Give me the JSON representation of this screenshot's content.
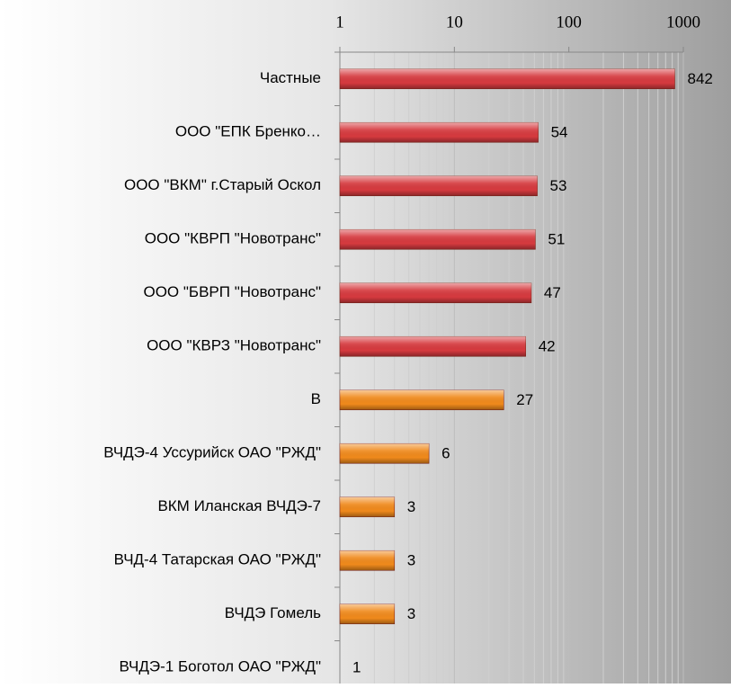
{
  "chart_data": {
    "type": "bar",
    "orientation": "horizontal",
    "xscale": "log",
    "categories": [
      "Частные",
      "ООО \"ЕПК Бренко…",
      "ООО \"ВКМ\" г.Старый Оскол",
      "ООО \"КВРП \"Новотранс\"",
      "ООО \"БВРП \"Новотранс\"",
      "ООО \"КВРЗ \"Новотранс\"",
      "В",
      "ВЧДЭ-4 Уссурийск ОАО \"РЖД\"",
      "ВКМ Иланская ВЧДЭ-7",
      "ВЧД-4 Татарская ОАО \"РЖД\"",
      "ВЧДЭ Гомель",
      "ВЧДЭ-1 Боготол ОАО \"РЖД\""
    ],
    "values": [
      842,
      54,
      53,
      51,
      47,
      42,
      27,
      6,
      3,
      3,
      3,
      1
    ],
    "colors": [
      "#d63a3f",
      "#d63a3f",
      "#d63a3f",
      "#d63a3f",
      "#d63a3f",
      "#d63a3f",
      "#f08a1c",
      "#f08a1c",
      "#f08a1c",
      "#f08a1c",
      "#f08a1c",
      "#f08a1c"
    ],
    "xlim": [
      1,
      1000
    ],
    "xticks": [
      1,
      10,
      100,
      1000
    ],
    "xminorticks": [
      2,
      3,
      4,
      5,
      6,
      7,
      8,
      9,
      20,
      30,
      40,
      50,
      60,
      70,
      80,
      90,
      200,
      300,
      400,
      500,
      600,
      700,
      800,
      900
    ],
    "grid": true
  }
}
